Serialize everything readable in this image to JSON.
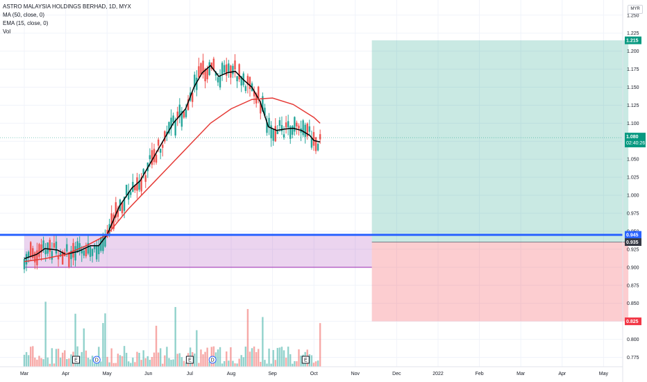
{
  "chart_data": {
    "type": "candlestick",
    "title": "ASTRO MALAYSIA HOLDINGS BERHAD, 1D, MYX",
    "legend": [
      "MA (50, close, 0)",
      "EMA (15, close, 0)",
      "Vol"
    ],
    "currency": "MYR",
    "y_ticks": [
      1.25,
      1.225,
      1.2,
      1.175,
      1.15,
      1.125,
      1.1,
      1.075,
      1.05,
      1.025,
      1.0,
      0.975,
      0.95,
      0.925,
      0.9,
      0.875,
      0.85,
      0.825,
      0.8,
      0.775
    ],
    "ylim": [
      0.762,
      1.271
    ],
    "x_ticks": [
      "Mar",
      "Apr",
      "May",
      "Jun",
      "Jul",
      "Aug",
      "Sep",
      "Oct",
      "Nov",
      "Dec",
      "2022",
      "Feb",
      "Mar",
      "Apr",
      "May"
    ],
    "series": [
      {
        "name": "EMA (15, close, 0)",
        "color": "#000000",
        "points": [
          [
            0.0,
            0.912
          ],
          [
            0.3,
            0.918
          ],
          [
            0.5,
            0.926
          ],
          [
            0.8,
            0.924
          ],
          [
            1.0,
            0.918
          ],
          [
            1.3,
            0.922
          ],
          [
            1.6,
            0.93
          ],
          [
            1.8,
            0.93
          ],
          [
            2.0,
            0.945
          ],
          [
            2.3,
            0.985
          ],
          [
            2.6,
            1.01
          ],
          [
            2.8,
            1.02
          ],
          [
            3.0,
            1.04
          ],
          [
            3.3,
            1.07
          ],
          [
            3.6,
            1.1
          ],
          [
            3.9,
            1.12
          ],
          [
            4.1,
            1.15
          ],
          [
            4.3,
            1.17
          ],
          [
            4.5,
            1.18
          ],
          [
            4.7,
            1.165
          ],
          [
            4.9,
            1.17
          ],
          [
            5.1,
            1.172
          ],
          [
            5.3,
            1.16
          ],
          [
            5.5,
            1.15
          ],
          [
            5.7,
            1.13
          ],
          [
            5.9,
            1.095
          ],
          [
            6.1,
            1.09
          ],
          [
            6.3,
            1.092
          ],
          [
            6.5,
            1.093
          ],
          [
            6.7,
            1.09
          ],
          [
            6.9,
            1.083
          ],
          [
            7.0,
            1.076
          ],
          [
            7.15,
            1.074
          ]
        ]
      },
      {
        "name": "MA (50, close, 0)",
        "color": "#e53935",
        "points": [
          [
            0.0,
            0.908
          ],
          [
            0.5,
            0.912
          ],
          [
            1.0,
            0.918
          ],
          [
            1.5,
            0.93
          ],
          [
            2.0,
            0.945
          ],
          [
            2.5,
            0.98
          ],
          [
            3.0,
            1.01
          ],
          [
            3.5,
            1.04
          ],
          [
            4.0,
            1.07
          ],
          [
            4.5,
            1.1
          ],
          [
            5.0,
            1.12
          ],
          [
            5.5,
            1.133
          ],
          [
            6.0,
            1.135
          ],
          [
            6.5,
            1.126
          ],
          [
            7.0,
            1.108
          ],
          [
            7.15,
            1.1
          ]
        ]
      }
    ],
    "last_price": 1.08,
    "countdown": "02:40:26",
    "price_tags": [
      {
        "value": 1.215,
        "label": "1.215",
        "color": "#089981"
      },
      {
        "value": 0.945,
        "label": "0.945",
        "color": "#2962ff"
      },
      {
        "value": 0.935,
        "label": "0.935",
        "color": "#363a45"
      },
      {
        "value": 0.825,
        "label": "0.825",
        "color": "#f23645"
      }
    ],
    "horizontal_line": {
      "value": 0.945,
      "color": "#2962ff"
    },
    "support_zone": {
      "from": 0.9,
      "to": 0.945,
      "x_from": 0.0,
      "x_to": 8.4,
      "color": "rgba(156,39,176,0.2)"
    },
    "long_position": {
      "entry": 0.935,
      "target": 1.215,
      "stop": 0.825,
      "x_from": 8.4,
      "x_to": 14.6
    },
    "events": [
      {
        "x": 1.25,
        "label": "E"
      },
      {
        "x": 1.75,
        "label": "D"
      },
      {
        "x": 4.0,
        "label": "E"
      },
      {
        "x": 4.55,
        "label": "D"
      },
      {
        "x": 6.8,
        "label": "E"
      }
    ]
  }
}
